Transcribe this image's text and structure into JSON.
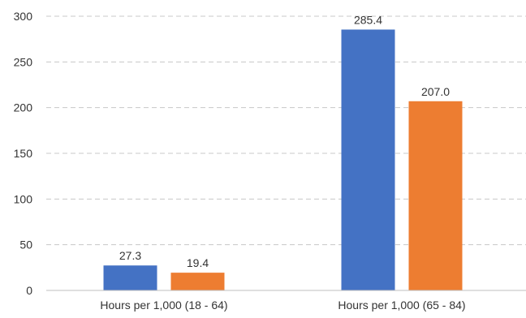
{
  "chart_data": {
    "type": "bar",
    "categories": [
      "Hours per 1,000 (18 - 64)",
      "Hours per 1,000 (65 - 84)"
    ],
    "series": [
      {
        "values": [
          27.3,
          285.4
        ],
        "labels": [
          "27.3",
          "285.4"
        ],
        "color": "#4472C4"
      },
      {
        "values": [
          19.4,
          207.0
        ],
        "labels": [
          "19.4",
          "207.0"
        ],
        "color": "#ED7D31"
      }
    ],
    "ylim": [
      0,
      300
    ],
    "yticks": [
      0,
      50,
      100,
      150,
      200,
      250,
      300
    ],
    "grid": true,
    "grid_style": "dashed",
    "legend": "none"
  }
}
